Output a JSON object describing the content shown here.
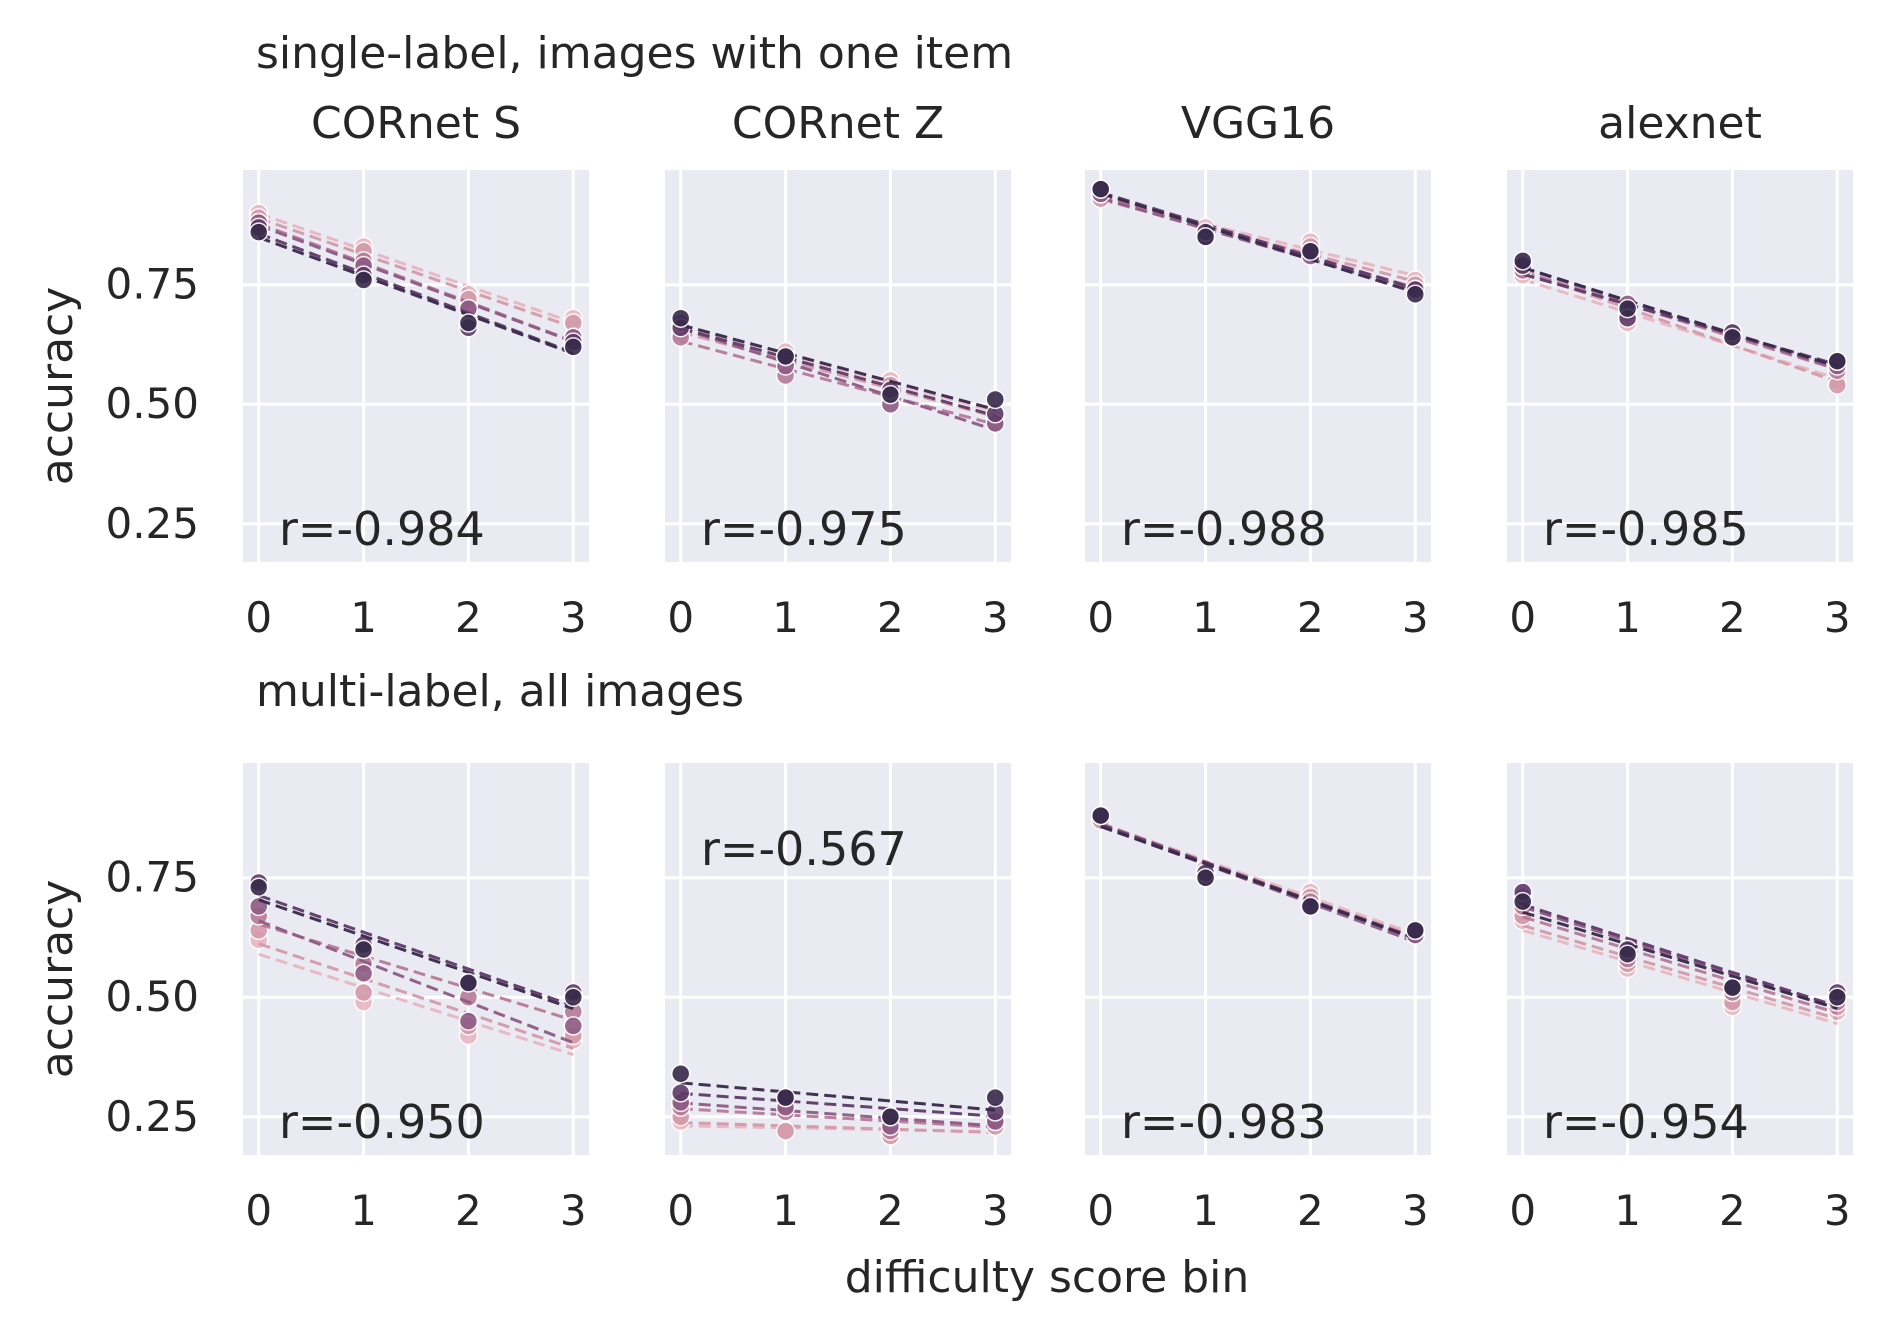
{
  "figure": {
    "xlabel": "difficulty score bin",
    "colors": [
      "#e8b7c1",
      "#d49aaa",
      "#b77a98",
      "#8f5b84",
      "#5f3b68",
      "#372a4a"
    ],
    "panel_bg": "#eaeaf2",
    "grid_color": "#ffffff"
  },
  "chart_data": [
    {
      "type": "scatter",
      "row": 0,
      "col": 0,
      "row_title": "single-label, images with one item",
      "title": "CORnet S",
      "ylabel": "accuracy",
      "x": [
        0,
        1,
        2,
        3
      ],
      "xlim": [
        -0.15,
        3.15
      ],
      "ylim": [
        0.17,
        0.99
      ],
      "xticks": [
        "0",
        "1",
        "2",
        "3"
      ],
      "yticks": [
        "0.25",
        "0.50",
        "0.75"
      ],
      "annotation": "r=-0.984",
      "series": [
        {
          "values": [
            0.9,
            0.83,
            0.73,
            0.68
          ]
        },
        {
          "values": [
            0.89,
            0.82,
            0.72,
            0.67
          ]
        },
        {
          "values": [
            0.88,
            0.8,
            0.7,
            0.64
          ]
        },
        {
          "values": [
            0.88,
            0.79,
            0.7,
            0.64
          ]
        },
        {
          "values": [
            0.87,
            0.77,
            0.66,
            0.63
          ]
        },
        {
          "values": [
            0.86,
            0.76,
            0.67,
            0.62
          ]
        }
      ]
    },
    {
      "type": "scatter",
      "row": 0,
      "col": 1,
      "title": "CORnet Z",
      "ylabel": "",
      "x": [
        0,
        1,
        2,
        3
      ],
      "xlim": [
        -0.15,
        3.15
      ],
      "ylim": [
        0.17,
        0.99
      ],
      "xticks": [
        "0",
        "1",
        "2",
        "3"
      ],
      "yticks": [],
      "annotation": "r=-0.975",
      "series": [
        {
          "values": [
            0.66,
            0.61,
            0.55,
            0.48
          ]
        },
        {
          "values": [
            0.65,
            0.59,
            0.54,
            0.47
          ]
        },
        {
          "values": [
            0.64,
            0.56,
            0.52,
            0.46
          ]
        },
        {
          "values": [
            0.67,
            0.58,
            0.5,
            0.46
          ]
        },
        {
          "values": [
            0.66,
            0.6,
            0.53,
            0.48
          ]
        },
        {
          "values": [
            0.68,
            0.6,
            0.52,
            0.51
          ]
        }
      ]
    },
    {
      "type": "scatter",
      "row": 0,
      "col": 2,
      "title": "VGG16",
      "ylabel": "",
      "x": [
        0,
        1,
        2,
        3
      ],
      "xlim": [
        -0.15,
        3.15
      ],
      "ylim": [
        0.17,
        0.99
      ],
      "xticks": [
        "0",
        "1",
        "2",
        "3"
      ],
      "yticks": [],
      "annotation": "r=-0.988",
      "series": [
        {
          "values": [
            0.93,
            0.87,
            0.84,
            0.76
          ]
        },
        {
          "values": [
            0.93,
            0.86,
            0.83,
            0.75
          ]
        },
        {
          "values": [
            0.94,
            0.86,
            0.82,
            0.74
          ]
        },
        {
          "values": [
            0.94,
            0.85,
            0.81,
            0.74
          ]
        },
        {
          "values": [
            0.95,
            0.86,
            0.82,
            0.74
          ]
        },
        {
          "values": [
            0.95,
            0.85,
            0.82,
            0.73
          ]
        }
      ]
    },
    {
      "type": "scatter",
      "row": 0,
      "col": 3,
      "title": "alexnet",
      "ylabel": "",
      "x": [
        0,
        1,
        2,
        3
      ],
      "xlim": [
        -0.15,
        3.15
      ],
      "ylim": [
        0.17,
        0.99
      ],
      "xticks": [
        "0",
        "1",
        "2",
        "3"
      ],
      "yticks": [],
      "annotation": "r=-0.985",
      "series": [
        {
          "values": [
            0.77,
            0.67,
            0.64,
            0.55
          ]
        },
        {
          "values": [
            0.78,
            0.69,
            0.64,
            0.54
          ]
        },
        {
          "values": [
            0.78,
            0.7,
            0.65,
            0.57
          ]
        },
        {
          "values": [
            0.79,
            0.71,
            0.64,
            0.58
          ]
        },
        {
          "values": [
            0.79,
            0.68,
            0.65,
            0.59
          ]
        },
        {
          "values": [
            0.8,
            0.7,
            0.64,
            0.59
          ]
        }
      ]
    },
    {
      "type": "scatter",
      "row": 1,
      "col": 0,
      "row_title": "multi-label, all images",
      "title": "",
      "ylabel": "accuracy",
      "x": [
        0,
        1,
        2,
        3
      ],
      "xlim": [
        -0.15,
        3.15
      ],
      "ylim": [
        0.17,
        0.99
      ],
      "xticks": [
        "0",
        "1",
        "2",
        "3"
      ],
      "yticks": [
        "0.25",
        "0.50",
        "0.75"
      ],
      "annotation": "r=-0.950",
      "series": [
        {
          "values": [
            0.62,
            0.49,
            0.42,
            0.41
          ]
        },
        {
          "values": [
            0.64,
            0.51,
            0.44,
            0.42
          ]
        },
        {
          "values": [
            0.67,
            0.57,
            0.5,
            0.47
          ]
        },
        {
          "values": [
            0.69,
            0.55,
            0.45,
            0.44
          ]
        },
        {
          "values": [
            0.74,
            0.61,
            0.53,
            0.51
          ]
        },
        {
          "values": [
            0.73,
            0.6,
            0.53,
            0.5
          ]
        }
      ]
    },
    {
      "type": "scatter",
      "row": 1,
      "col": 1,
      "title": "",
      "ylabel": "",
      "x": [
        0,
        1,
        2,
        3
      ],
      "xlim": [
        -0.15,
        3.15
      ],
      "ylim": [
        0.17,
        0.99
      ],
      "xticks": [
        "0",
        "1",
        "2",
        "3"
      ],
      "yticks": [],
      "annotation": "r=-0.567",
      "series": [
        {
          "values": [
            0.24,
            0.22,
            0.21,
            0.23
          ]
        },
        {
          "values": [
            0.25,
            0.22,
            0.21,
            0.23
          ]
        },
        {
          "values": [
            0.27,
            0.26,
            0.22,
            0.24
          ]
        },
        {
          "values": [
            0.28,
            0.27,
            0.23,
            0.24
          ]
        },
        {
          "values": [
            0.3,
            0.29,
            0.25,
            0.26
          ]
        },
        {
          "values": [
            0.34,
            0.29,
            0.25,
            0.29
          ]
        }
      ]
    },
    {
      "type": "scatter",
      "row": 1,
      "col": 2,
      "title": "",
      "ylabel": "",
      "x": [
        0,
        1,
        2,
        3
      ],
      "xlim": [
        -0.15,
        3.15
      ],
      "ylim": [
        0.17,
        0.99
      ],
      "xticks": [
        "0",
        "1",
        "2",
        "3"
      ],
      "yticks": [],
      "annotation": "r=-0.983",
      "series": [
        {
          "values": [
            0.87,
            0.77,
            0.72,
            0.63
          ]
        },
        {
          "values": [
            0.87,
            0.76,
            0.71,
            0.63
          ]
        },
        {
          "values": [
            0.88,
            0.76,
            0.7,
            0.63
          ]
        },
        {
          "values": [
            0.88,
            0.75,
            0.69,
            0.63
          ]
        },
        {
          "values": [
            0.88,
            0.76,
            0.69,
            0.64
          ]
        },
        {
          "values": [
            0.88,
            0.75,
            0.69,
            0.64
          ]
        }
      ]
    },
    {
      "type": "scatter",
      "row": 1,
      "col": 3,
      "title": "",
      "ylabel": "",
      "x": [
        0,
        1,
        2,
        3
      ],
      "xlim": [
        -0.15,
        3.15
      ],
      "ylim": [
        0.17,
        0.99
      ],
      "xticks": [
        "0",
        "1",
        "2",
        "3"
      ],
      "yticks": [],
      "annotation": "r=-0.954",
      "series": [
        {
          "values": [
            0.66,
            0.56,
            0.48,
            0.47
          ]
        },
        {
          "values": [
            0.67,
            0.57,
            0.49,
            0.48
          ]
        },
        {
          "values": [
            0.69,
            0.58,
            0.51,
            0.49
          ]
        },
        {
          "values": [
            0.71,
            0.6,
            0.52,
            0.5
          ]
        },
        {
          "values": [
            0.72,
            0.6,
            0.52,
            0.51
          ]
        },
        {
          "values": [
            0.7,
            0.59,
            0.52,
            0.5
          ]
        }
      ]
    }
  ]
}
